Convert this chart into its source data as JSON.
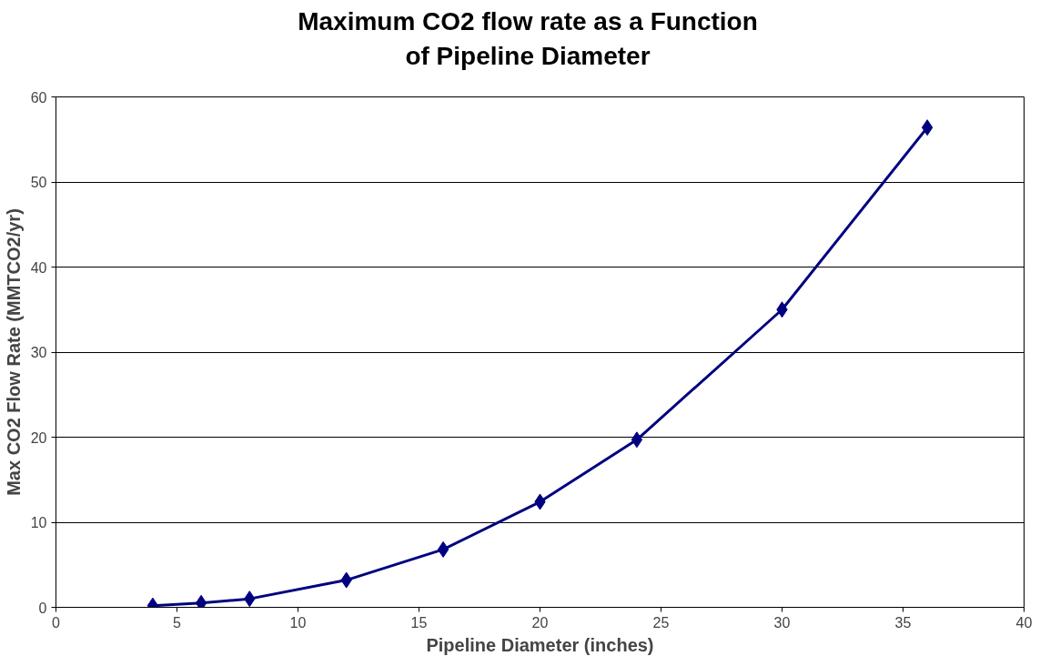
{
  "chart_data": {
    "type": "line",
    "title": "Maximum CO2 flow rate as a Function\nof Pipeline Diameter",
    "xlabel": "Pipeline Diameter (inches)",
    "ylabel": "Max CO2 Flow Rate (MMTCO2/yr)",
    "x": [
      4,
      6,
      8,
      12,
      16,
      20,
      24,
      30,
      36
    ],
    "series": [
      {
        "color": "#000080",
        "values": [
          0.2,
          0.5,
          1.0,
          3.2,
          6.8,
          12.4,
          19.7,
          35.0,
          56.4
        ]
      }
    ],
    "xlim": [
      0,
      40
    ],
    "xticks": [
      0,
      5,
      10,
      15,
      20,
      25,
      30,
      35,
      40
    ],
    "ylim": [
      0,
      60
    ],
    "yticks": [
      0,
      10,
      20,
      30,
      40,
      50,
      60
    ],
    "grid": "y",
    "marker": "diamond",
    "line_style": "solid"
  }
}
